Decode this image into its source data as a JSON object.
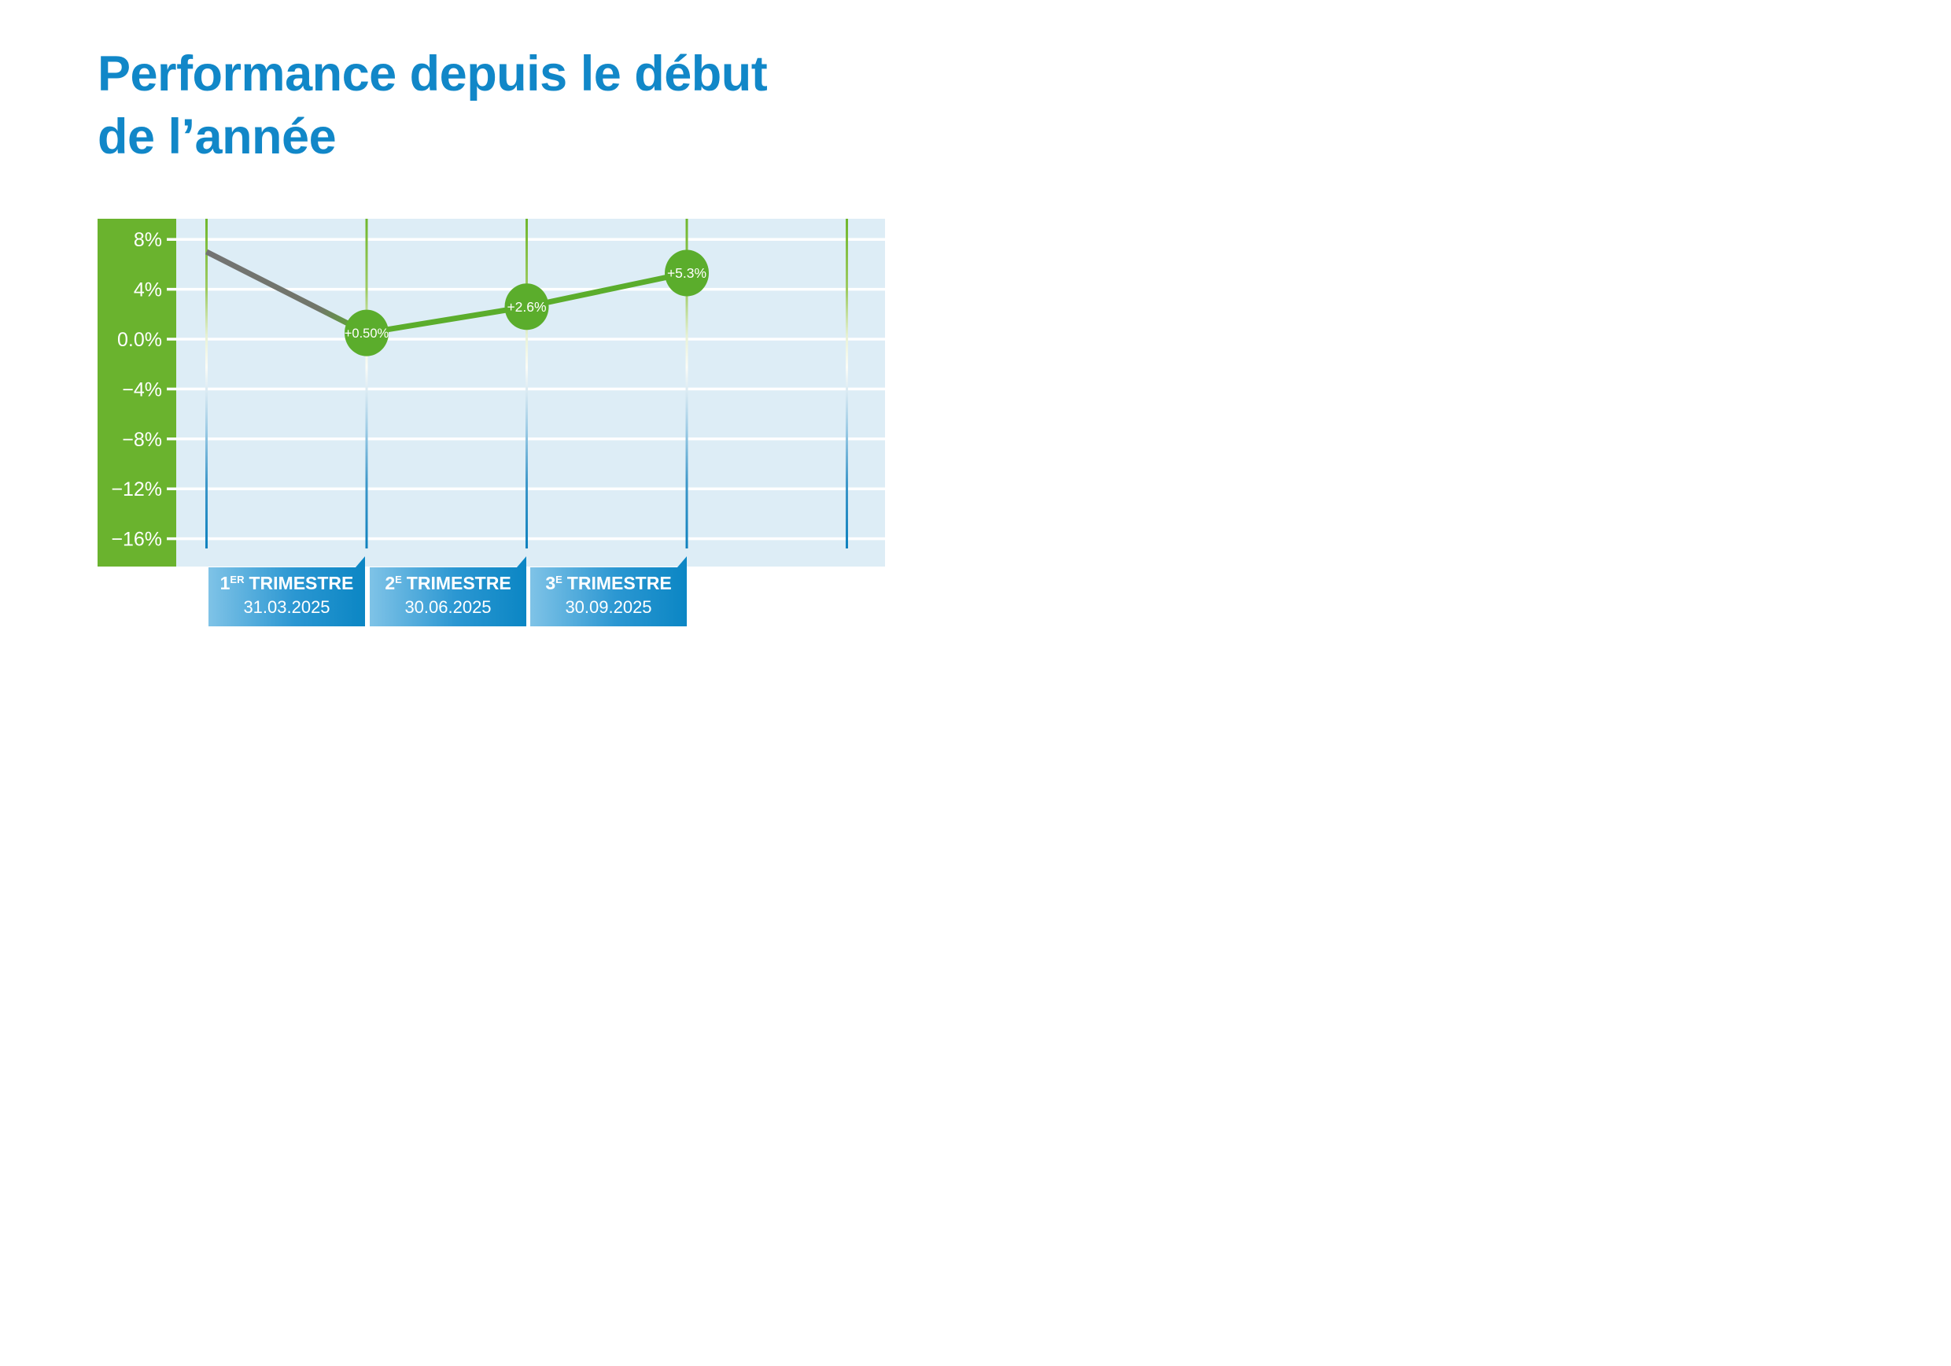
{
  "title": {
    "line1": "Performance depuis le début",
    "line2": "de l’année"
  },
  "colors": {
    "title_blue": "#1187c8",
    "axis_band_green": "#6ab32e",
    "plot_area_blue": "#ddedf6",
    "gridline_white": "#ffffff",
    "line_green": "#5bad2c",
    "line_start_gray": "#737373",
    "point_green": "#5bad2c",
    "point_label_white": "#ffffff",
    "vline_top_green": "#6fb62c",
    "vline_bottom_blue": "#0e81be",
    "box_gradient_start": "#7fc3e7",
    "box_gradient_end": "#0b86c4"
  },
  "chart_data": {
    "type": "line",
    "title": "Performance depuis le début de l’année",
    "ylabel": "",
    "xlabel": "",
    "ylim": [
      -18.2,
      9.6
    ],
    "grid": true,
    "legend": "none",
    "y_ticks": [
      {
        "label": "8%",
        "value": 8
      },
      {
        "label": "4%",
        "value": 4
      },
      {
        "label": "0.0%",
        "value": 0
      },
      {
        "label": "−4%",
        "value": -4
      },
      {
        "label": "−8%",
        "value": -8
      },
      {
        "label": "−12%",
        "value": -12
      },
      {
        "label": "−16%",
        "value": -16
      }
    ],
    "x_axis": {
      "gridline_count": 5,
      "quarters": [
        {
          "number": "1",
          "ordinal": "ER",
          "word": "TRIMESTRE",
          "date": "31.03.2025"
        },
        {
          "number": "2",
          "ordinal": "E",
          "word": "TRIMESTRE",
          "date": "30.06.2025"
        },
        {
          "number": "3",
          "ordinal": "E",
          "word": "TRIMESTRE",
          "date": "30.09.2025"
        }
      ]
    },
    "series": [
      {
        "name": "performance-ytd",
        "points": [
          {
            "x": 0,
            "value": 7.0,
            "label": "",
            "marker": false,
            "segment_color": "gray-to-green"
          },
          {
            "x": 1,
            "value": 0.5,
            "label": "+0.50%",
            "marker": true
          },
          {
            "x": 2,
            "value": 2.6,
            "label": "+2.6%",
            "marker": true
          },
          {
            "x": 3,
            "value": 5.3,
            "label": "+5.3%",
            "marker": true
          }
        ]
      }
    ]
  }
}
